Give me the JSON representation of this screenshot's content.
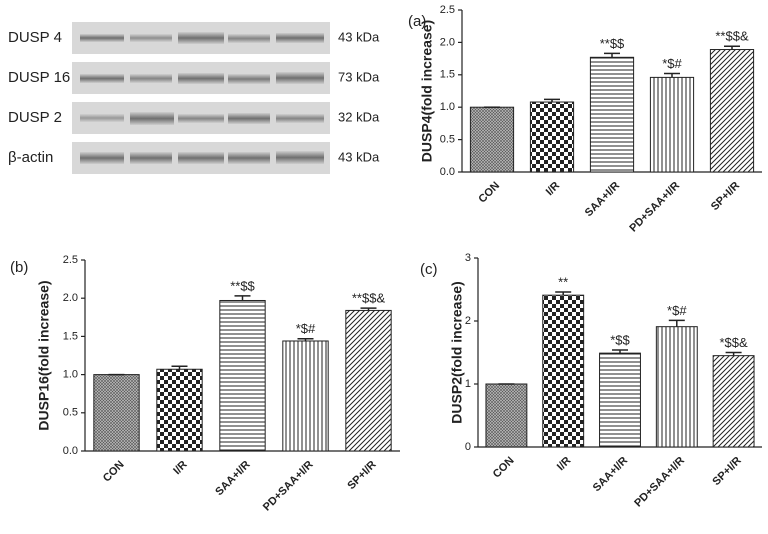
{
  "blot": {
    "rows": [
      {
        "name": "DUSP 4",
        "size": "43 kDa"
      },
      {
        "name": "DUSP 16",
        "size": "73 kDa"
      },
      {
        "name": "DUSP 2",
        "size": "32 kDa"
      },
      {
        "name": "β-actin",
        "size": "43 kDa"
      }
    ]
  },
  "chart_data": [
    {
      "type": "bar",
      "panel": "(a)",
      "ylabel": "DUSP4(fold increase)",
      "categories": [
        "CON",
        "I/R",
        "SAA+I/R",
        "PD+SAA+I/R",
        "SP+I/R"
      ],
      "values": [
        1.0,
        1.08,
        1.77,
        1.46,
        1.89
      ],
      "errors": [
        0,
        0.04,
        0.06,
        0.06,
        0.05
      ],
      "annotations": [
        null,
        null,
        "**$$",
        "*$#",
        "**$$&"
      ],
      "patterns": [
        "crosshatch",
        "checker",
        "horizontal",
        "vertical",
        "diagonal"
      ],
      "ylim": [
        0,
        2.5
      ],
      "yticks": [
        {
          "value": 0,
          "label": "0.0"
        },
        0.5,
        {
          "value": 1,
          "label": "1.0"
        },
        1.5,
        {
          "value": 2,
          "label": "2.0"
        },
        2.5
      ]
    },
    {
      "type": "bar",
      "panel": "(b)",
      "ylabel": "DUSP16(fold increase)",
      "categories": [
        "CON",
        "I/R",
        "SAA+I/R",
        "PD+SAA+I/R",
        "SP+I/R"
      ],
      "values": [
        1.0,
        1.07,
        1.97,
        1.44,
        1.84
      ],
      "errors": [
        0,
        0.04,
        0.06,
        0.03,
        0.03
      ],
      "annotations": [
        null,
        null,
        "**$$",
        "*$#",
        "**$$&"
      ],
      "patterns": [
        "crosshatch",
        "checker",
        "horizontal",
        "vertical",
        "diagonal"
      ],
      "ylim": [
        0,
        2.5
      ],
      "yticks": [
        {
          "value": 0,
          "label": "0.0"
        },
        0.5,
        {
          "value": 1,
          "label": "1.0"
        },
        1.5,
        {
          "value": 2,
          "label": "2.0"
        },
        2.5
      ]
    },
    {
      "type": "bar",
      "panel": "(c)",
      "ylabel": "DUSP2(fold increase)",
      "categories": [
        "CON",
        "I/R",
        "SAA+I/R",
        "PD+SAA+I/R",
        "SP+I/R"
      ],
      "values": [
        1.0,
        2.41,
        1.49,
        1.91,
        1.45
      ],
      "errors": [
        0,
        0.05,
        0.05,
        0.1,
        0.05
      ],
      "annotations": [
        null,
        "**",
        "*$$",
        "*$#",
        "*$$&"
      ],
      "patterns": [
        "crosshatch",
        "checker",
        "horizontal",
        "vertical",
        "diagonal"
      ],
      "ylim": [
        0,
        3
      ],
      "yticks": [
        0,
        1,
        2,
        3
      ]
    }
  ]
}
